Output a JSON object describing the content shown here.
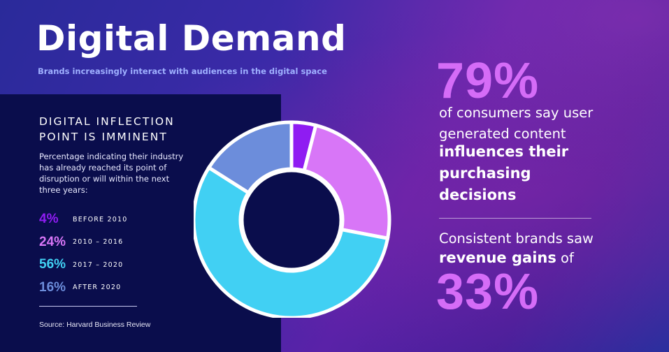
{
  "title": "Digital Demand",
  "subtitle": "Brands increasingly interact with audiences in the digital space",
  "left": {
    "heading_line1": "DIGITAL INFLECTION",
    "heading_line2": "POINT IS IMMINENT",
    "description": "Percentage indicating their industry has already reached its point of disruption or will within the next three years:",
    "source": "Source: Harvard Business Review"
  },
  "chart_data": {
    "type": "pie",
    "style": "donut",
    "categories": [
      "BEFORE 2010",
      "2010 – 2016",
      "2017 – 2020",
      "AFTER 2020"
    ],
    "values": [
      4,
      24,
      56,
      16
    ],
    "labels": [
      "4%",
      "24%",
      "56%",
      "16%"
    ],
    "colors": [
      "#8f1cf2",
      "#d876f7",
      "#41d0f3",
      "#6c8ddb"
    ],
    "title": "DIGITAL INFLECTION POINT IS IMMINENT"
  },
  "right": {
    "stat1_value": "79%",
    "stat1_line1": "of consumers say user",
    "stat1_line2": "generated content",
    "stat1_bold1": "influences their",
    "stat1_bold2": "purchasing",
    "stat1_bold3": "decisions",
    "stat2_line1": "Consistent brands saw",
    "stat2_bold": "revenue gains",
    "stat2_suffix": " of",
    "stat2_value": "33%"
  }
}
